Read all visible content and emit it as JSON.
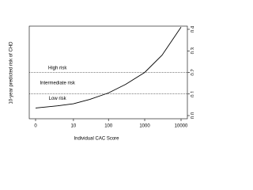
{
  "chart_data": {
    "type": "line",
    "x_label": "Individual CAC Score",
    "y_label": "10-year predicted risk of CHD",
    "x": [
      0,
      3,
      10,
      30,
      100,
      300,
      1000,
      3000,
      10000
    ],
    "series": [
      {
        "color": "#000000",
        "values": [
          0.035,
          0.045,
          0.055,
          0.075,
          0.105,
          0.145,
          0.2,
          0.28,
          0.41
        ]
      }
    ],
    "xscale": "log1p",
    "xlim": [
      0,
      10000
    ],
    "xticks": [
      0,
      10,
      100,
      1000,
      10000
    ],
    "ylim": [
      0,
      0.4
    ],
    "yticks": [
      {
        "value": 0,
        "label": "0.0"
      },
      0.1,
      0.2,
      0.3,
      0.4
    ],
    "yaxis_side": "right",
    "hlines": [
      0.1,
      0.2
    ],
    "annotations": [
      {
        "text": "High risk",
        "x": 3,
        "y": 0.22
      },
      {
        "text": "Intermediate risk",
        "x": 3,
        "y": 0.15
      },
      {
        "text": "Low risk",
        "x": 3,
        "y": 0.08
      }
    ]
  }
}
